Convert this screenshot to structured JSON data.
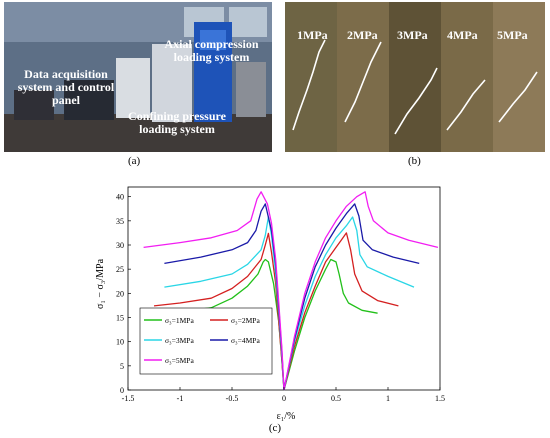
{
  "figure": {
    "panel_a": {
      "caption": "(a)",
      "labels": {
        "acquisition": "Data acquisition system and control panel",
        "axial": "Axial compression loading system",
        "confining": "Confining pressure loading system"
      }
    },
    "panel_b": {
      "caption": "(b)",
      "specimens": [
        "1MPa",
        "2MPa",
        "3MPa",
        "4MPa",
        "5MPa"
      ]
    },
    "panel_c": {
      "caption": "(c)"
    }
  },
  "colors": {
    "s1": "#22c01a",
    "s2": "#d42020",
    "s3": "#2ad6e6",
    "s4": "#1a1aa8",
    "s5": "#f21ef2",
    "photo_wall": "#5d6f86",
    "photo_floor": "#3f3a38",
    "rock": "#8d7a58"
  },
  "chart_data": {
    "type": "line",
    "xlabel": "ε₁/%",
    "ylabel": "σ₁ − σ₃/MPa",
    "xlim": [
      -1.5,
      1.5
    ],
    "ylim": [
      0,
      42
    ],
    "xticks": [
      "-1.5",
      "-1",
      "-0.5",
      "0",
      "0.5",
      "1",
      "1.5"
    ],
    "yticks": [
      "0",
      "5",
      "10",
      "15",
      "20",
      "25",
      "30",
      "35",
      "40"
    ],
    "legend": {
      "position": "lower-left",
      "entries": [
        "σ₃=1MPa",
        "σ₃=2MPa",
        "σ₃=3MPa",
        "σ₃=4MPa",
        "σ₃=5MPa"
      ]
    },
    "series": [
      {
        "name": "σ₃=1MPa",
        "color_key": "s1",
        "lateral": [
          [
            0,
            0
          ],
          [
            -0.02,
            6
          ],
          [
            -0.05,
            14
          ],
          [
            -0.1,
            22
          ],
          [
            -0.15,
            26.5
          ],
          [
            -0.18,
            27
          ],
          [
            -0.2,
            26.5
          ],
          [
            -0.25,
            24
          ],
          [
            -0.35,
            21.5
          ],
          [
            -0.5,
            19
          ],
          [
            -0.7,
            17
          ],
          [
            -1.0,
            16.2
          ],
          [
            -1.15,
            15.7
          ]
        ],
        "axial": [
          [
            0,
            0
          ],
          [
            0.1,
            8
          ],
          [
            0.2,
            15
          ],
          [
            0.3,
            20.5
          ],
          [
            0.4,
            25
          ],
          [
            0.45,
            27
          ],
          [
            0.5,
            26.5
          ],
          [
            0.53,
            24
          ],
          [
            0.57,
            20
          ],
          [
            0.62,
            18
          ],
          [
            0.75,
            16.5
          ],
          [
            0.9,
            15.9
          ]
        ]
      },
      {
        "name": "σ₃=2MPa",
        "color_key": "s2",
        "lateral": [
          [
            0,
            0
          ],
          [
            -0.02,
            6
          ],
          [
            -0.05,
            14
          ],
          [
            -0.08,
            22
          ],
          [
            -0.12,
            28.5
          ],
          [
            -0.15,
            32.4
          ],
          [
            -0.18,
            30
          ],
          [
            -0.22,
            27
          ],
          [
            -0.35,
            23.5
          ],
          [
            -0.5,
            21
          ],
          [
            -0.7,
            19
          ],
          [
            -1.0,
            18
          ],
          [
            -1.25,
            17.4
          ]
        ],
        "axial": [
          [
            0,
            0
          ],
          [
            0.1,
            9
          ],
          [
            0.2,
            16
          ],
          [
            0.3,
            21.5
          ],
          [
            0.4,
            26.5
          ],
          [
            0.5,
            29.5
          ],
          [
            0.55,
            31
          ],
          [
            0.6,
            32.5
          ],
          [
            0.64,
            29
          ],
          [
            0.68,
            24
          ],
          [
            0.75,
            20.5
          ],
          [
            0.9,
            18.5
          ],
          [
            1.1,
            17.4
          ]
        ]
      },
      {
        "name": "σ₃=3MPa",
        "color_key": "s3",
        "lateral": [
          [
            0,
            0
          ],
          [
            -0.02,
            7
          ],
          [
            -0.05,
            16
          ],
          [
            -0.08,
            24
          ],
          [
            -0.12,
            32
          ],
          [
            -0.15,
            35.8
          ],
          [
            -0.18,
            32
          ],
          [
            -0.22,
            29
          ],
          [
            -0.35,
            26
          ],
          [
            -0.5,
            24
          ],
          [
            -0.8,
            22.5
          ],
          [
            -1.15,
            21.3
          ]
        ],
        "axial": [
          [
            0,
            0
          ],
          [
            0.1,
            10
          ],
          [
            0.2,
            17.5
          ],
          [
            0.3,
            23.5
          ],
          [
            0.4,
            28
          ],
          [
            0.5,
            31.5
          ],
          [
            0.6,
            34
          ],
          [
            0.66,
            35.8
          ],
          [
            0.7,
            33
          ],
          [
            0.73,
            28
          ],
          [
            0.8,
            25.5
          ],
          [
            1.0,
            23.5
          ],
          [
            1.25,
            21.3
          ]
        ]
      },
      {
        "name": "σ₃=4MPa",
        "color_key": "s4",
        "lateral": [
          [
            0,
            0
          ],
          [
            -0.02,
            8
          ],
          [
            -0.05,
            17
          ],
          [
            -0.08,
            26
          ],
          [
            -0.12,
            33
          ],
          [
            -0.18,
            38.5
          ],
          [
            -0.22,
            37
          ],
          [
            -0.27,
            33
          ],
          [
            -0.35,
            30.5
          ],
          [
            -0.5,
            29
          ],
          [
            -0.8,
            27.5
          ],
          [
            -1.15,
            26.2
          ]
        ],
        "axial": [
          [
            0,
            0
          ],
          [
            0.1,
            10.5
          ],
          [
            0.2,
            19
          ],
          [
            0.3,
            25.5
          ],
          [
            0.4,
            30
          ],
          [
            0.5,
            33.5
          ],
          [
            0.6,
            36.5
          ],
          [
            0.68,
            38.5
          ],
          [
            0.72,
            36
          ],
          [
            0.76,
            31
          ],
          [
            0.85,
            29
          ],
          [
            1.05,
            27.5
          ],
          [
            1.3,
            26.2
          ]
        ]
      },
      {
        "name": "σ₃=5MPa",
        "color_key": "s5",
        "lateral": [
          [
            0,
            0
          ],
          [
            -0.02,
            8.5
          ],
          [
            -0.05,
            18
          ],
          [
            -0.08,
            27
          ],
          [
            -0.12,
            34.5
          ],
          [
            -0.16,
            38.5
          ],
          [
            -0.22,
            41
          ],
          [
            -0.26,
            39.5
          ],
          [
            -0.32,
            35
          ],
          [
            -0.45,
            33
          ],
          [
            -0.7,
            31.5
          ],
          [
            -1.0,
            30.5
          ],
          [
            -1.35,
            29.5
          ]
        ],
        "axial": [
          [
            0,
            0
          ],
          [
            0.1,
            11
          ],
          [
            0.2,
            20
          ],
          [
            0.3,
            26.5
          ],
          [
            0.4,
            31.5
          ],
          [
            0.5,
            35
          ],
          [
            0.6,
            38
          ],
          [
            0.7,
            40
          ],
          [
            0.78,
            41
          ],
          [
            0.81,
            38
          ],
          [
            0.86,
            35
          ],
          [
            1.0,
            32.5
          ],
          [
            1.2,
            31
          ],
          [
            1.48,
            29.5
          ]
        ]
      }
    ]
  }
}
